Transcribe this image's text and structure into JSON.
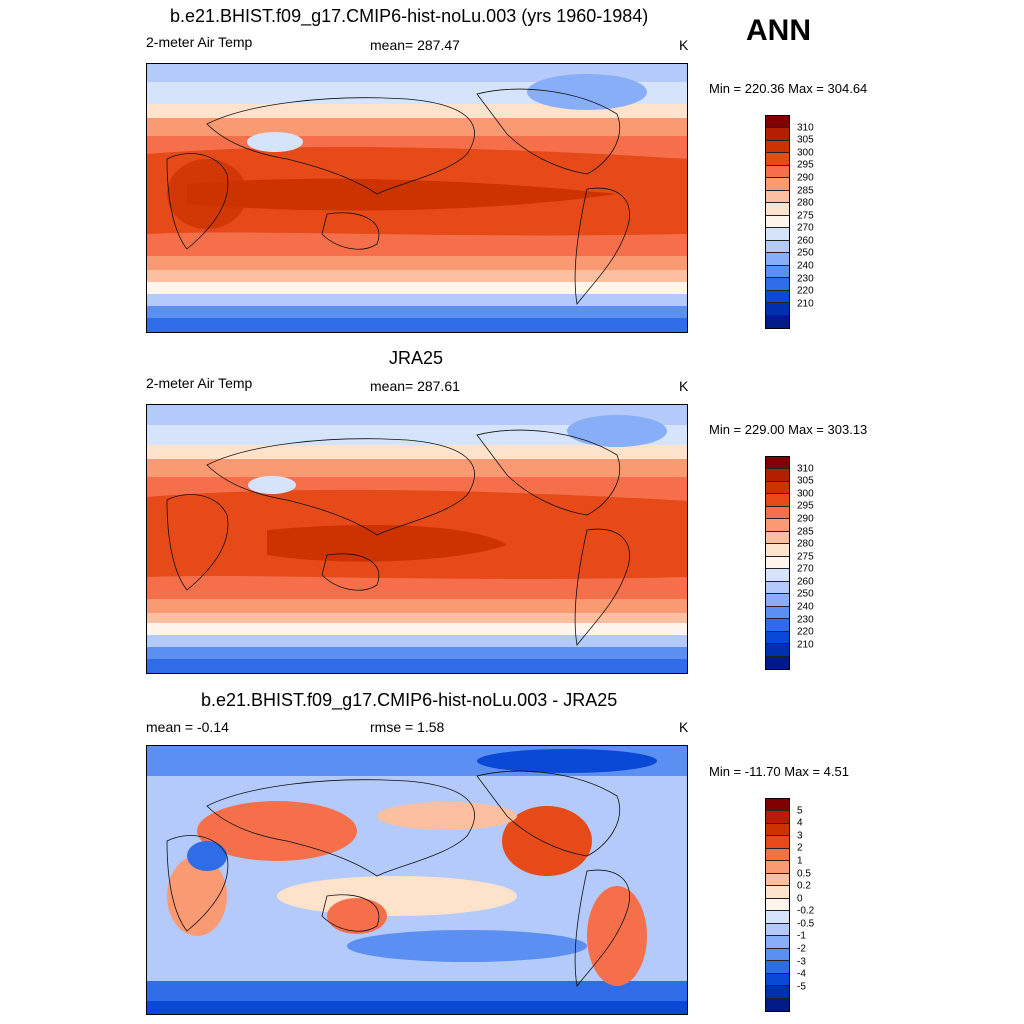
{
  "season": "ANN",
  "panels": [
    {
      "title": "b.e21.BHIST.f09_g17.CMIP6-hist-noLu.003 (yrs 1960-1984)",
      "left": "2-meter Air Temp",
      "center": "mean= 287.47",
      "right": "K",
      "minmax": "Min = 220.36 Max = 304.64"
    },
    {
      "title": "JRA25",
      "left": "2-meter Air Temp",
      "center": "mean= 287.61",
      "right": "K",
      "minmax": "Min = 229.00 Max = 303.13"
    },
    {
      "title": "b.e21.BHIST.f09_g17.CMIP6-hist-noLu.003 - JRA25",
      "left": "mean =  -0.14",
      "center": "rmse =   1.58",
      "right": "K",
      "minmax": "Min = -11.70 Max =   4.51"
    }
  ],
  "colorbars": {
    "temperature": {
      "labels": [
        "310",
        "305",
        "300",
        "295",
        "290",
        "285",
        "280",
        "275",
        "270",
        "260",
        "250",
        "240",
        "230",
        "220",
        "210"
      ],
      "colors": [
        "#800000",
        "#b32000",
        "#cc3300",
        "#e64a19",
        "#f5704a",
        "#fa9a73",
        "#fcc0a0",
        "#fde2cc",
        "#fff5ec",
        "#d6e4fb",
        "#b3cafa",
        "#87aef7",
        "#5b8ff2",
        "#2e6ce8",
        "#0a48d6",
        "#0030b0",
        "#001a88"
      ]
    },
    "difference": {
      "labels": [
        "5",
        "4",
        "3",
        "2",
        "1",
        "0.5",
        "0.2",
        "0",
        "-0.2",
        "-0.5",
        "-1",
        "-2",
        "-3",
        "-4",
        "-5"
      ],
      "colors": [
        "#800000",
        "#b32000",
        "#cc3300",
        "#e64a19",
        "#f5704a",
        "#fa9a73",
        "#fcc0a0",
        "#fde2cc",
        "#fff5ec",
        "#d6e4fb",
        "#b3cafa",
        "#87aef7",
        "#5b8ff2",
        "#2e6ce8",
        "#0a48d6",
        "#0030b0",
        "#001a88"
      ]
    }
  }
}
